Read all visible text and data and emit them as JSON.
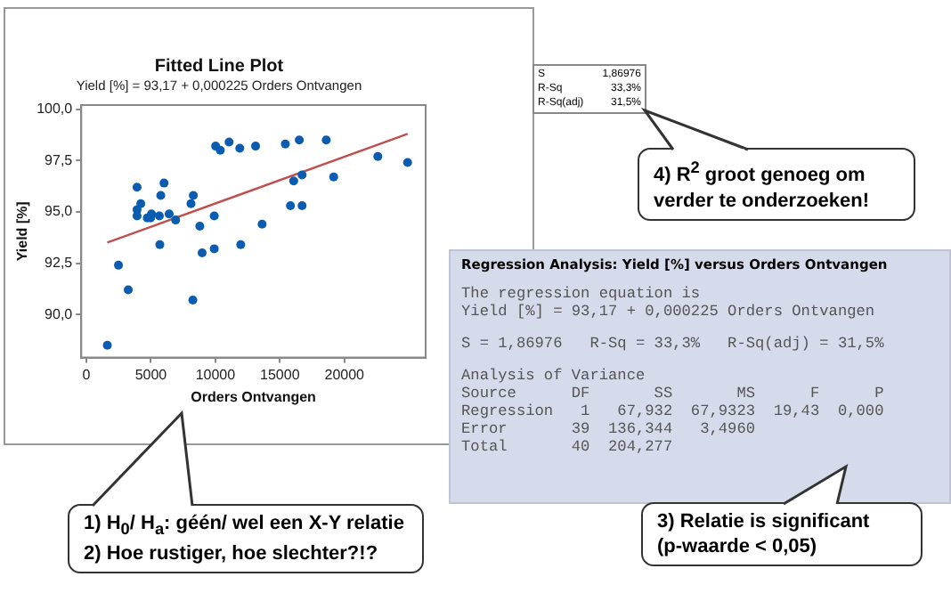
{
  "chart_data": {
    "type": "scatter",
    "title": "Fitted Line Plot",
    "subtitle": "Yield [%] = 93,17 + 0,000225 Orders Ontvangen",
    "xlabel": "Orders Ontvangen",
    "ylabel": "Yield [%]",
    "x": [
      1622,
      2486,
      3243,
      3928,
      3928,
      3928,
      4216,
      4721,
      4973,
      5045,
      5658,
      5694,
      5766,
      6018,
      6414,
      6919,
      8108,
      8288,
      8252,
      8793,
      8973,
      9910,
      9910,
      10018,
      10378,
      11063,
      11892,
      11964,
      13117,
      13622,
      15423,
      15820,
      16072,
      16505,
      16721,
      16721,
      18595,
      19171,
      22595,
      24901
    ],
    "series": [
      {
        "type": "scatter",
        "marker": "circle",
        "color": "#0a5cb0",
        "values": [
          88.5,
          92.4,
          91.2,
          96.2,
          95.1,
          94.8,
          95.4,
          94.7,
          94.7,
          94.9,
          94.8,
          93.4,
          95.8,
          96.4,
          94.9,
          94.6,
          95.4,
          95.8,
          90.7,
          94.3,
          93.0,
          94.8,
          93.2,
          98.2,
          98.0,
          98.4,
          98.1,
          93.4,
          98.2,
          94.4,
          98.3,
          95.3,
          96.5,
          98.5,
          96.8,
          95.3,
          98.5,
          96.7,
          97.7,
          97.4
        ]
      },
      {
        "type": "line",
        "marker": "none",
        "color": "#c0504d",
        "x": [
          1622,
          24901
        ],
        "values": [
          93.5,
          98.8
        ]
      }
    ],
    "xlim": [
      -400,
      26300
    ],
    "xticks": [
      0,
      5000,
      10000,
      15000,
      20000
    ],
    "ylim": [
      87.9,
      100.2
    ],
    "yticks": [
      {
        "value": 90,
        "label": "90,0"
      },
      {
        "value": 92.5,
        "label": "92,5"
      },
      {
        "value": 95,
        "label": "95,0"
      },
      {
        "value": 97.5,
        "label": "97,5"
      },
      {
        "value": 100,
        "label": "100,0"
      }
    ],
    "grid": false,
    "legend": false,
    "annotations": [
      "S 1,86976",
      "R-Sq 33,3%",
      "R-Sq(adj) 31,5%",
      "4) R$^{2}$ groot genoeg om verder te onderzoeken!",
      "Regression Analysis: Yield [%] versus Orders Ontvangen",
      "The regression equation is",
      "Yield [%] = 93,17 + 0,000225 Orders Ontvangen",
      "S = 1,86976   R-Sq = 33,3%   R-Sq(adj) = 31,5%",
      "Analysis of Variance",
      "Source      DF       SS       MS      F      P",
      "Regression   1   67,932  67,9323  19,43  0,000",
      "Error       39  136,344   3,4960",
      "Total       40  204,277",
      "3) Relatie is significant",
      "(p-waarde < 0,05)",
      "1) H$_{0}$/ H$_{a}$: géén/ wel een X-Y relatie",
      "2) Hoe rustiger, hoe slechter?!?"
    ]
  }
}
